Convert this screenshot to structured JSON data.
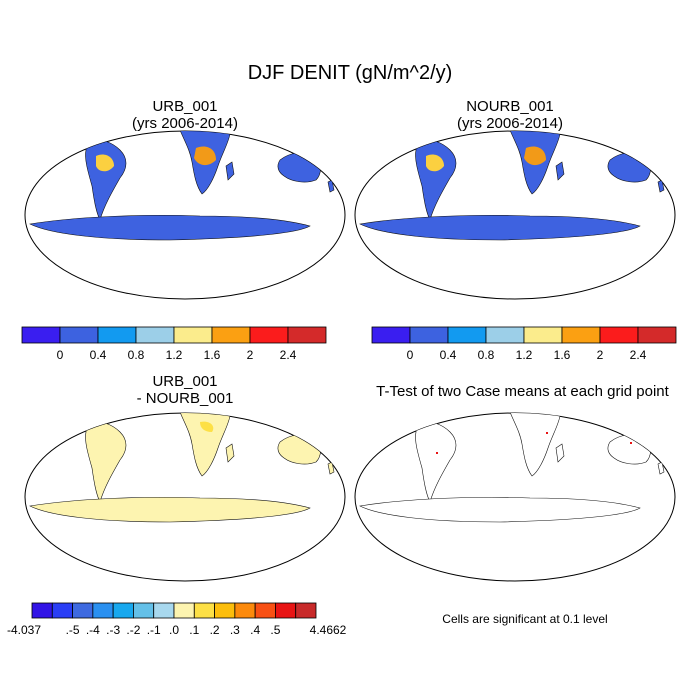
{
  "main_title": "DJF DENIT (gN/m^2/y)",
  "panels": [
    {
      "id": "p1",
      "title_line1": "URB_001",
      "title_line2": "(yrs 2006-2014)"
    },
    {
      "id": "p2",
      "title_line1": "NOURB_001",
      "title_line2": "(yrs 2006-2014)"
    },
    {
      "id": "p3",
      "title_line1": "URB_001",
      "title_line2": "- NOURB_001"
    },
    {
      "id": "p4",
      "title_line1": "T-Test of two Case means at each grid point",
      "title_line2": ""
    }
  ],
  "colorbar_top": {
    "colors": [
      "#3a1ef0",
      "#3d62e0",
      "#129af0",
      "#9ccfe8",
      "#fbec8c",
      "#fba012",
      "#fb1c1c",
      "#d42a2a"
    ],
    "labels": [
      "0",
      "0.4",
      "0.8",
      "1.2",
      "1.6",
      "2",
      "2.4"
    ]
  },
  "colorbar_diff": {
    "colors": [
      "#3214e6",
      "#2a3ef5",
      "#3e6ae0",
      "#2a90f0",
      "#18a8ee",
      "#64c0e8",
      "#a8d8ee",
      "#fdf4b0",
      "#fde046",
      "#fcbe0c",
      "#fc8a0c",
      "#f85014",
      "#e81414",
      "#c82a2a"
    ],
    "labels": [
      "-4.037",
      ".-5",
      ".-4",
      ".-3",
      ".-2",
      ".-1",
      ".0",
      ".1",
      ".2",
      ".3",
      ".4",
      ".5",
      "4.4662"
    ]
  },
  "significance_note": "Cells are significant at 0.1 level"
}
